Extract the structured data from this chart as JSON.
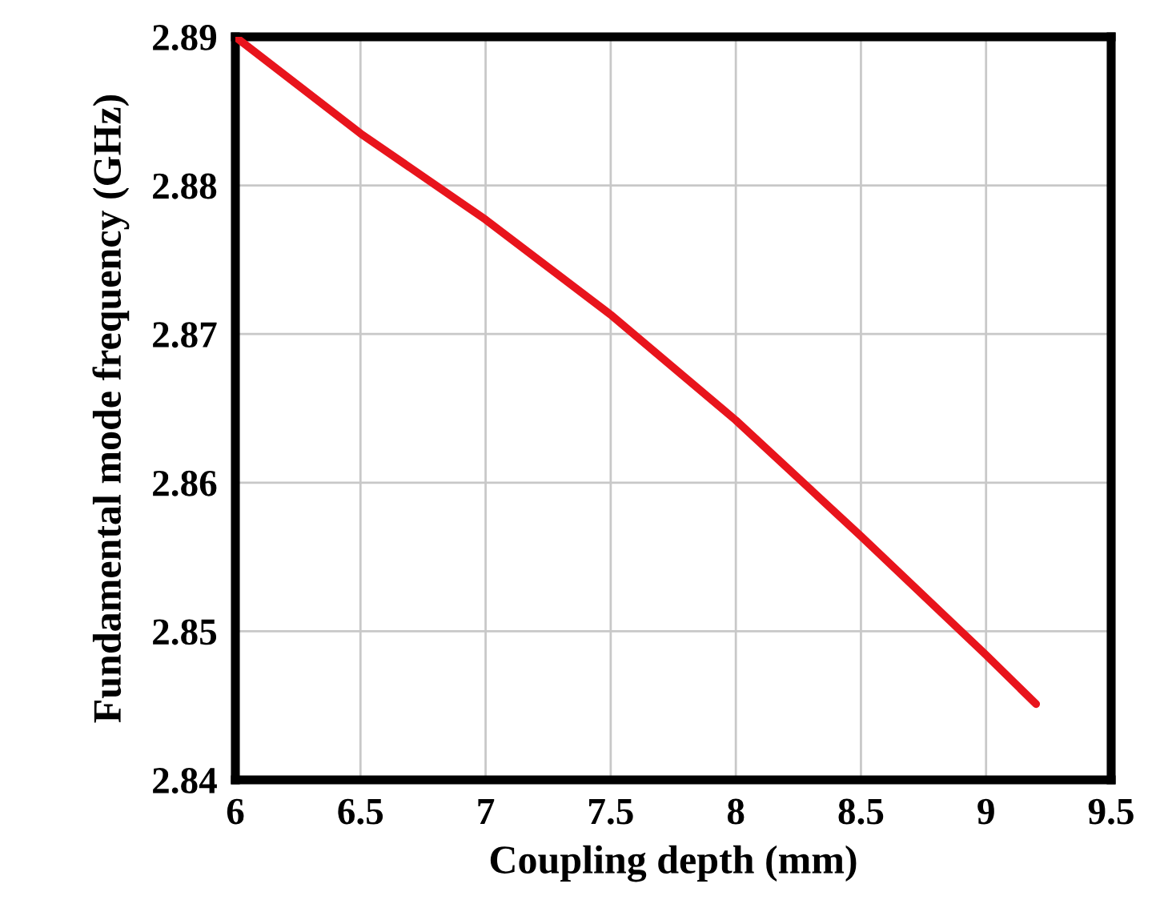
{
  "chart_data": {
    "type": "line",
    "xlabel": "Coupling depth (mm)",
    "ylabel": "Fundamental mode frequency (GHz)",
    "x": [
      6,
      6.5,
      7,
      7.5,
      8,
      8.5,
      9,
      9.2
    ],
    "series": [
      {
        "color": "#e8141c",
        "values": [
          2.89,
          2.8835,
          2.8777,
          2.8713,
          2.8642,
          2.8564,
          2.8484,
          2.8451
        ]
      }
    ],
    "xlim": [
      6,
      9.5
    ],
    "xticks": [
      6,
      6.5,
      7,
      7.5,
      8,
      8.5,
      9,
      9.5
    ],
    "ylim": [
      2.84,
      2.89
    ],
    "yticks": [
      {
        "value": 2.84,
        "label": "2.84"
      },
      {
        "value": 2.85,
        "label": "2.85"
      },
      {
        "value": 2.86,
        "label": "2.86"
      },
      {
        "value": 2.87,
        "label": "2.87"
      },
      {
        "value": 2.88,
        "label": "2.88"
      },
      {
        "value": 2.89,
        "label": "2.89"
      }
    ],
    "grid": true,
    "marker": "none",
    "line_style": "solid"
  }
}
